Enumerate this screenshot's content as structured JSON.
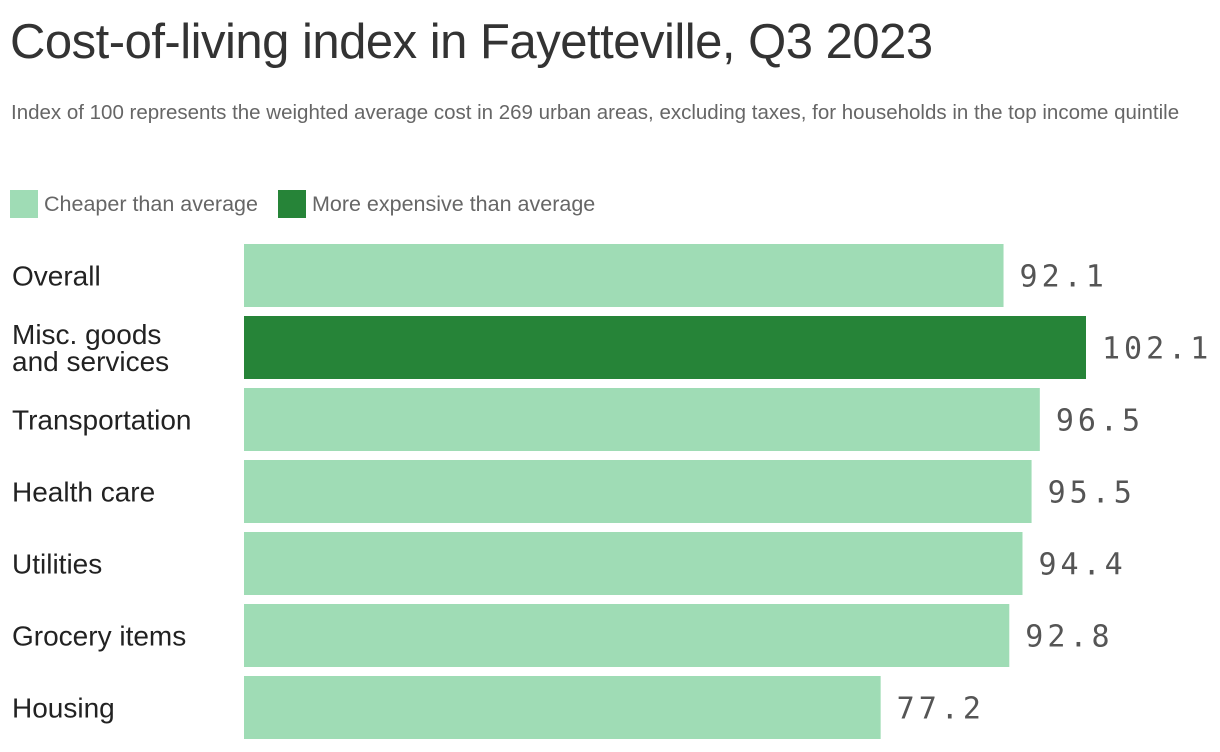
{
  "title": "Cost-of-living index in Fayetteville, Q3 2023",
  "subtitle": "Index of 100 represents the weighted average cost in 269 urban areas, excluding taxes, for households in the top income quintile",
  "legend": [
    {
      "label": "Cheaper than average",
      "color": "#9fdcb5"
    },
    {
      "label": "More expensive than average",
      "color": "#268438"
    }
  ],
  "chart_data": {
    "type": "bar",
    "orientation": "horizontal",
    "categories": [
      [
        "Overall"
      ],
      [
        "Misc. goods",
        "and services"
      ],
      [
        "Transportation"
      ],
      [
        "Health care"
      ],
      [
        "Utilities"
      ],
      [
        "Grocery items"
      ],
      [
        "Housing"
      ]
    ],
    "values": [
      92.1,
      102.1,
      96.5,
      95.5,
      94.4,
      92.8,
      77.2
    ],
    "value_labels": [
      "92.1",
      "102.1",
      "96.5",
      "95.5",
      "94.4",
      "92.8",
      "77.2"
    ],
    "baseline": 100,
    "colors": {
      "below": "#9fdcb5",
      "above": "#268438"
    },
    "xlim": [
      0,
      102.1
    ],
    "grid": false,
    "legend_position": "top-left"
  }
}
